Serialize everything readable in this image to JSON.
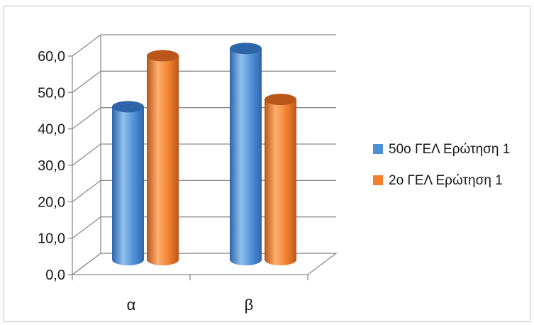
{
  "chart_data": {
    "type": "bar",
    "style": "3d-cylinder",
    "categories": [
      "α",
      "β"
    ],
    "series": [
      {
        "name": "50ο ΓΕΛ Ερώτηση 1",
        "values": [
          42.0,
          58.0
        ],
        "color": "#4f8fd6",
        "color_dark": "#2e64a8",
        "color_light": "#8fc0f0"
      },
      {
        "name": "2ο ΓΕΛ Ερώτηση 1",
        "values": [
          56.0,
          44.0
        ],
        "color": "#f07f2e",
        "color_dark": "#b9561a",
        "color_light": "#ffb070"
      }
    ],
    "yticks": [
      "0,0",
      "10,0",
      "20,0",
      "30,0",
      "40,0",
      "50,0",
      "60,0"
    ],
    "ylim": [
      0,
      60
    ],
    "grid": true,
    "legend_position": "right"
  }
}
